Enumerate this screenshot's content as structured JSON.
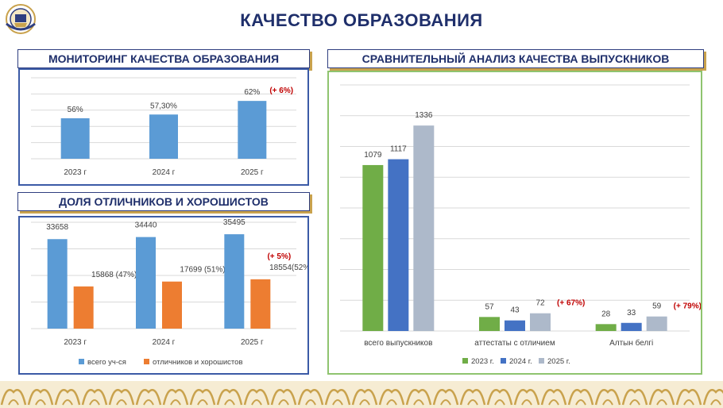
{
  "header": {
    "title": "КАЧЕСТВО ОБРАЗОВАНИЯ"
  },
  "sections": {
    "monitoring": "МОНИТОРИНГ КАЧЕСТВА ОБРАЗОВАНИЯ",
    "excellent": "ДОЛЯ ОТЛИЧНИКОВ И ХОРОШИСТОВ",
    "graduates": "СРАВНИТЕЛЬНЫЙ АНАЛИЗ КАЧЕСТВА ВЫПУСКНИКОВ"
  },
  "colors": {
    "navy": "#1f2f6b",
    "blue": "#5b9bd5",
    "orange": "#ed7d31",
    "green": "#70ad47",
    "darkblue": "#4472c4",
    "grayblue": "#adb9ca",
    "red": "#c00000",
    "gold": "#c9a24d"
  },
  "chart_data": [
    {
      "type": "bar",
      "categories": [
        "2023 г",
        "2024 г",
        "2025 г"
      ],
      "values": [
        56,
        57.3,
        62
      ],
      "value_labels": [
        "56%",
        "57,30%",
        "62%"
      ],
      "annotations": [
        {
          "category": "2025 г",
          "text": "(+ 6%)"
        }
      ],
      "ylim": [
        0,
        70
      ]
    },
    {
      "type": "bar",
      "categories": [
        "2023 г",
        "2024 г",
        "2025 г"
      ],
      "series": [
        {
          "name": "всего уч-ся",
          "values": [
            33658,
            34440,
            35495
          ],
          "labels": [
            "33658",
            "34440",
            "35495"
          ]
        },
        {
          "name": "отличников и хорошистов",
          "values": [
            15868,
            17699,
            18554
          ],
          "labels": [
            "15868 (47%)",
            "17699 (51%)",
            "18554(52%)"
          ]
        }
      ],
      "annotations": [
        {
          "category": "2025 г",
          "text": "(+ 5%)"
        }
      ],
      "ylim": [
        0,
        40000
      ],
      "legend": "bottom"
    },
    {
      "type": "bar",
      "categories": [
        "всего выпускников",
        "аттестаты с отличием",
        "Алтын белгі"
      ],
      "series": [
        {
          "name": "2023 г.",
          "values": [
            1079,
            57,
            28
          ]
        },
        {
          "name": "2024 г.",
          "values": [
            1117,
            43,
            33
          ]
        },
        {
          "name": "2025 г.",
          "values": [
            1336,
            72,
            59
          ]
        }
      ],
      "annotations": [
        {
          "category": "аттестаты с отличием",
          "text": "(+ 67%)"
        },
        {
          "category": "Алтын белгі",
          "text": "(+ 79%)"
        }
      ],
      "ylim": [
        0,
        1600
      ],
      "legend": "bottom"
    }
  ]
}
